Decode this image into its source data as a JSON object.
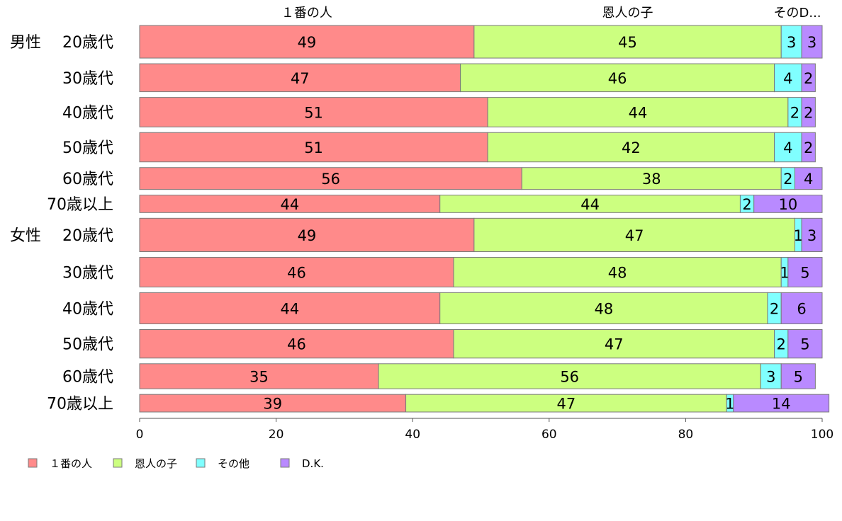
{
  "chart_data": {
    "type": "bar",
    "orientation": "horizontal",
    "stacked": "percent",
    "title": "",
    "xlabel": "",
    "ylabel": "",
    "xlim": [
      0,
      100
    ],
    "xticks": [
      0,
      20,
      40,
      60,
      80,
      100
    ],
    "grid": false,
    "legend_position": "bottom-left",
    "column_headers": [
      "１番の人",
      "恩人の子",
      "そのD..."
    ],
    "groups": [
      {
        "label": "男性",
        "row_start": 0
      },
      {
        "label": "女性",
        "row_start": 6
      }
    ],
    "categories": [
      "20歳代",
      "30歳代",
      "40歳代",
      "50歳代",
      "60歳代",
      "70歳以上",
      "20歳代",
      "30歳代",
      "40歳代",
      "50歳代",
      "60歳代",
      "70歳以上"
    ],
    "row_weights": [
      241,
      207,
      218,
      217,
      162,
      129,
      247,
      219,
      231,
      211,
      185,
      130
    ],
    "series": [
      {
        "name": "１番の人",
        "color": "#ff8a8a",
        "values": [
          49,
          47,
          51,
          51,
          56,
          44,
          49,
          46,
          44,
          46,
          35,
          39
        ]
      },
      {
        "name": "恩人の子",
        "color": "#ccff80",
        "values": [
          45,
          46,
          44,
          42,
          38,
          44,
          47,
          48,
          48,
          47,
          56,
          47
        ]
      },
      {
        "name": "その他",
        "color": "#80ffff",
        "values": [
          3,
          4,
          2,
          4,
          2,
          2,
          1,
          1,
          2,
          2,
          3,
          1
        ]
      },
      {
        "name": "D.K.",
        "color": "#b98aff",
        "values": [
          3,
          2,
          2,
          2,
          4,
          10,
          3,
          5,
          6,
          5,
          5,
          14
        ]
      }
    ]
  }
}
